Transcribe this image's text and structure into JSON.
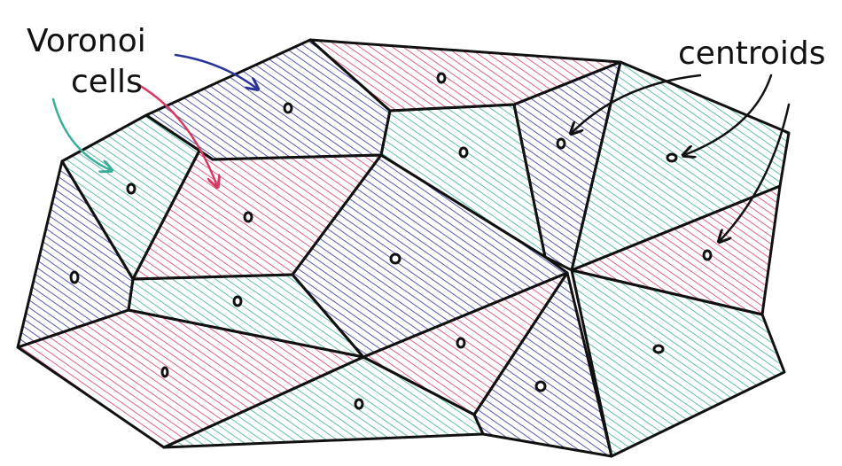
{
  "labels": {
    "voronoi_line1": "Voronoi",
    "voronoi_line2": "cells",
    "centroids": "centroids"
  },
  "colors": {
    "pink": "#d63a62",
    "blue": "#28339a",
    "teal": "#3aae9a",
    "outline": "#111111"
  }
}
